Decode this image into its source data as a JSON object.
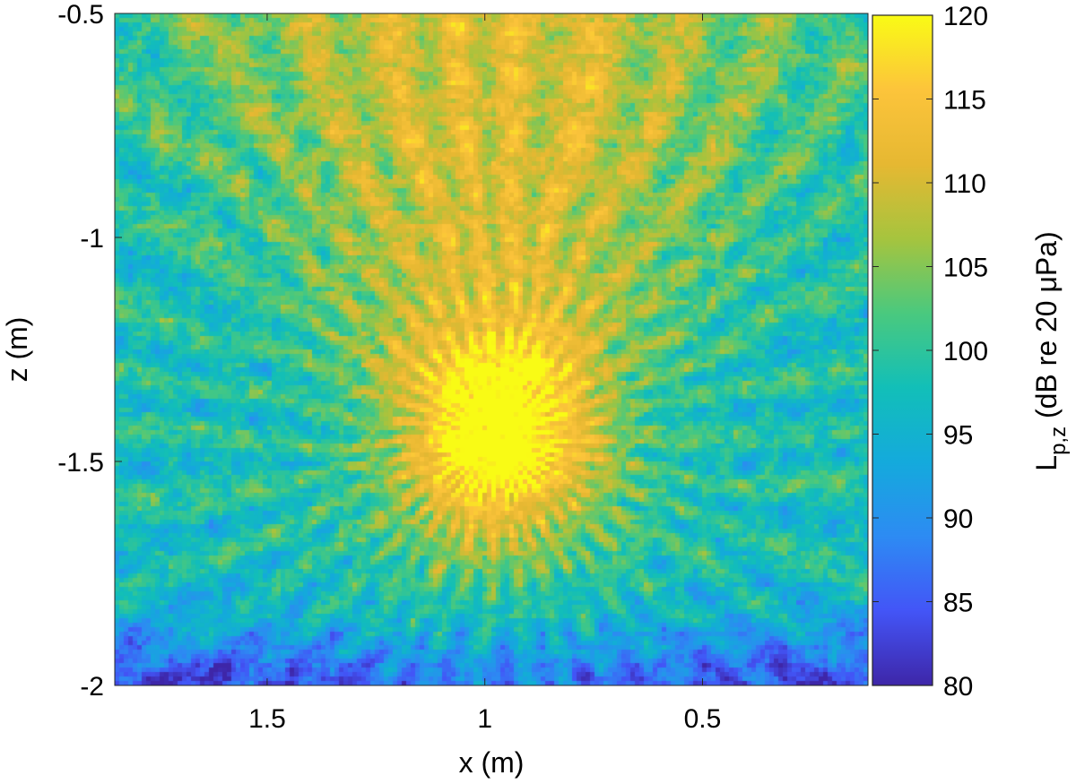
{
  "chart_data": {
    "type": "heatmap",
    "title": "",
    "xlabel": "x (m)",
    "ylabel": "z (m)",
    "x_reversed": true,
    "xlim": [
      1.85,
      0.12
    ],
    "ylim": [
      -2,
      -0.5
    ],
    "xticks": [
      1.5,
      1,
      0.5
    ],
    "xtick_labels": [
      "1.5",
      "1",
      "0.5"
    ],
    "yticks": [
      -0.5,
      -1,
      -1.5,
      -2
    ],
    "ytick_labels": [
      "-0.5",
      "-1",
      "-1.5",
      "-2"
    ],
    "colorbar": {
      "label_main": "L",
      "label_sub": "p,z",
      "label_rest": " (dB re 20 μPa)",
      "clim": [
        80,
        120
      ],
      "ticks": [
        80,
        85,
        90,
        95,
        100,
        105,
        110,
        115,
        120
      ],
      "tick_labels": [
        "80",
        "85",
        "90",
        "95",
        "100",
        "105",
        "110",
        "115",
        "120"
      ],
      "colormap": "parula",
      "colormap_stops": [
        "#3e26a8",
        "#4355f7",
        "#2d8bf3",
        "#14aadc",
        "#12bfb8",
        "#4ac97e",
        "#a6c43e",
        "#e6b832",
        "#fcc43b",
        "#f9fb15"
      ]
    },
    "features": {
      "focus_x": 0.97,
      "focus_z": -1.45,
      "focus_level_db": 118,
      "upper_beam_level_db": 112,
      "bottom_level_db": 86
    }
  }
}
